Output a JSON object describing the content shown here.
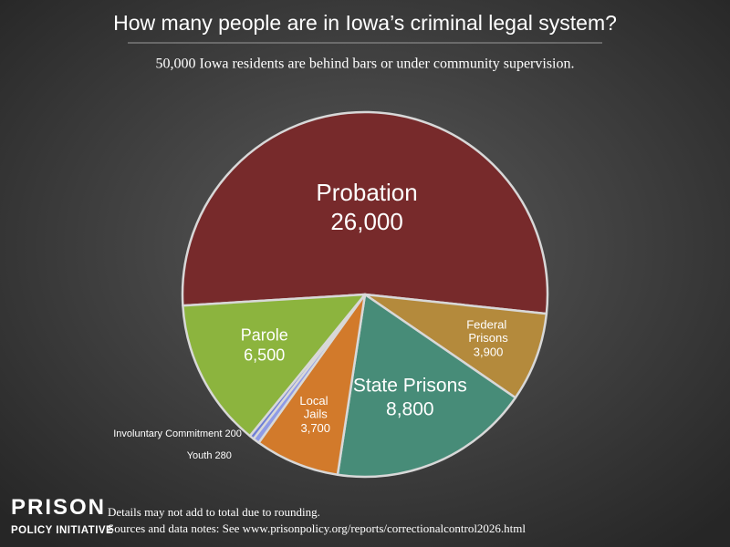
{
  "chart_data": {
    "type": "pie",
    "title": "How many people are in Iowa’s criminal legal system?",
    "subtitle": "50,000 Iowa residents are behind bars or under community supervision.",
    "categories": [
      "Probation",
      "Federal Prisons",
      "State Prisons",
      "Local Jails",
      "Youth",
      "Involuntary Commitment",
      "Parole"
    ],
    "values": [
      26000,
      3900,
      8800,
      3700,
      280,
      200,
      6500
    ],
    "value_labels": [
      "26,000",
      "3,900",
      "8,800",
      "3,700",
      "280",
      "200",
      "6,500"
    ],
    "colors": [
      "#772a2b",
      "#b48a3c",
      "#478c78",
      "#d27a2b",
      "#8f9be6",
      "#6f7fd6",
      "#8cb43e"
    ],
    "logo": [
      "PRISON",
      "POLICY INITIATIVE"
    ],
    "notes": [
      "Details may not add to total due to rounding.",
      "Sources and data notes: See www.prisonpolicy.org/reports/correctionalcontrol2026.html"
    ]
  }
}
